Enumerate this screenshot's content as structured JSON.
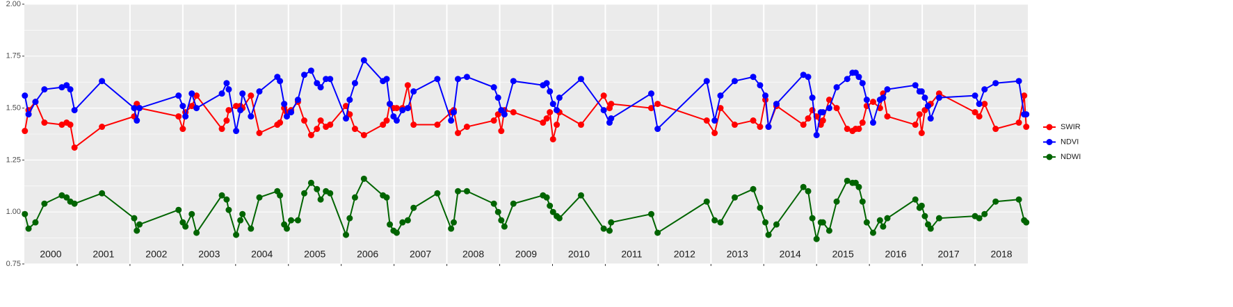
{
  "chart_data": {
    "type": "line",
    "x": [
      2000.01,
      2000.08,
      2000.21,
      2000.38,
      2000.71,
      2000.8,
      2000.87,
      2000.95,
      2001.47,
      2002.08,
      2002.13,
      2002.18,
      2002.92,
      2003.0,
      2003.05,
      2003.17,
      2003.26,
      2003.74,
      2003.83,
      2003.87,
      2004.01,
      2004.09,
      2004.13,
      2004.29,
      2004.45,
      2004.79,
      2004.84,
      2004.92,
      2004.97,
      2005.05,
      2005.18,
      2005.3,
      2005.43,
      2005.54,
      2005.61,
      2005.71,
      2005.79,
      2006.09,
      2006.16,
      2006.26,
      2006.43,
      2006.79,
      2006.86,
      2006.92,
      2006.99,
      2007.05,
      2007.16,
      2007.26,
      2007.37,
      2007.82,
      2008.08,
      2008.13,
      2008.21,
      2008.38,
      2008.89,
      2008.97,
      2009.03,
      2009.09,
      2009.26,
      2009.82,
      2009.89,
      2009.95,
      2010.01,
      2010.08,
      2010.13,
      2010.54,
      2010.97,
      2011.08,
      2011.11,
      2011.87,
      2011.99,
      2012.92,
      2013.07,
      2013.18,
      2013.45,
      2013.8,
      2013.93,
      2014.03,
      2014.09,
      2014.24,
      2014.75,
      2014.84,
      2014.92,
      2015.0,
      2015.08,
      2015.12,
      2015.24,
      2015.38,
      2015.58,
      2015.68,
      2015.74,
      2015.8,
      2015.87,
      2015.95,
      2016.07,
      2016.2,
      2016.26,
      2016.34,
      2016.87,
      2016.95,
      2016.99,
      2017.05,
      2017.11,
      2017.16,
      2017.32,
      2018.0,
      2018.08,
      2018.18,
      2018.39,
      2018.83,
      2018.93,
      2018.97
    ],
    "series": [
      {
        "name": "SWIR",
        "color": "#FF0000",
        "values": [
          1.39,
          1.49,
          1.53,
          1.43,
          1.42,
          1.43,
          1.42,
          1.31,
          1.41,
          1.46,
          1.52,
          1.5,
          1.46,
          1.4,
          1.48,
          1.51,
          1.56,
          1.4,
          1.44,
          1.49,
          1.51,
          1.51,
          1.5,
          1.56,
          1.38,
          1.42,
          1.43,
          1.5,
          1.48,
          1.49,
          1.53,
          1.44,
          1.37,
          1.4,
          1.44,
          1.41,
          1.42,
          1.51,
          1.47,
          1.4,
          1.37,
          1.42,
          1.44,
          1.52,
          1.5,
          1.5,
          1.5,
          1.61,
          1.42,
          1.42,
          1.48,
          1.49,
          1.38,
          1.41,
          1.44,
          1.47,
          1.39,
          1.49,
          1.48,
          1.43,
          1.45,
          1.48,
          1.35,
          1.42,
          1.48,
          1.42,
          1.56,
          1.5,
          1.52,
          1.5,
          1.52,
          1.44,
          1.38,
          1.5,
          1.42,
          1.44,
          1.41,
          1.54,
          1.41,
          1.51,
          1.42,
          1.45,
          1.49,
          1.46,
          1.42,
          1.44,
          1.54,
          1.5,
          1.4,
          1.39,
          1.4,
          1.4,
          1.43,
          1.51,
          1.53,
          1.5,
          1.57,
          1.46,
          1.42,
          1.47,
          1.38,
          1.49,
          1.51,
          1.52,
          1.57,
          1.48,
          1.46,
          1.52,
          1.4,
          1.43,
          1.56,
          1.41
        ]
      },
      {
        "name": "NDVI",
        "color": "#0000FF",
        "values": [
          1.56,
          1.47,
          1.53,
          1.59,
          1.6,
          1.61,
          1.59,
          1.49,
          1.63,
          1.5,
          1.44,
          1.5,
          1.56,
          1.51,
          1.46,
          1.57,
          1.5,
          1.57,
          1.62,
          1.59,
          1.39,
          1.49,
          1.57,
          1.46,
          1.58,
          1.65,
          1.63,
          1.52,
          1.46,
          1.48,
          1.54,
          1.66,
          1.68,
          1.62,
          1.6,
          1.64,
          1.64,
          1.45,
          1.54,
          1.62,
          1.73,
          1.63,
          1.64,
          1.52,
          1.46,
          1.44,
          1.49,
          1.5,
          1.58,
          1.64,
          1.44,
          1.48,
          1.64,
          1.65,
          1.6,
          1.55,
          1.49,
          1.47,
          1.63,
          1.61,
          1.62,
          1.58,
          1.52,
          1.49,
          1.55,
          1.64,
          1.49,
          1.43,
          1.45,
          1.57,
          1.4,
          1.63,
          1.44,
          1.56,
          1.63,
          1.65,
          1.61,
          1.56,
          1.41,
          1.52,
          1.66,
          1.65,
          1.55,
          1.37,
          1.48,
          1.48,
          1.5,
          1.6,
          1.64,
          1.67,
          1.67,
          1.65,
          1.62,
          1.54,
          1.43,
          1.54,
          1.55,
          1.59,
          1.61,
          1.58,
          1.58,
          1.55,
          1.51,
          1.45,
          1.55,
          1.56,
          1.52,
          1.59,
          1.62,
          1.63,
          1.47,
          1.47
        ]
      },
      {
        "name": "NDWI",
        "color": "#006400",
        "values": [
          0.99,
          0.92,
          0.95,
          1.04,
          1.08,
          1.07,
          1.05,
          1.04,
          1.09,
          0.97,
          0.91,
          0.94,
          1.01,
          0.95,
          0.93,
          0.99,
          0.9,
          1.08,
          1.06,
          1.01,
          0.89,
          0.96,
          0.99,
          0.92,
          1.07,
          1.1,
          1.08,
          0.94,
          0.92,
          0.96,
          0.96,
          1.09,
          1.14,
          1.11,
          1.06,
          1.1,
          1.09,
          0.89,
          0.97,
          1.07,
          1.16,
          1.08,
          1.07,
          0.94,
          0.91,
          0.9,
          0.95,
          0.96,
          1.02,
          1.09,
          0.92,
          0.95,
          1.1,
          1.1,
          1.04,
          1.0,
          0.96,
          0.93,
          1.04,
          1.08,
          1.07,
          1.03,
          1.0,
          0.98,
          0.97,
          1.08,
          0.92,
          0.91,
          0.95,
          0.99,
          0.9,
          1.05,
          0.96,
          0.95,
          1.07,
          1.11,
          1.02,
          0.95,
          0.89,
          0.94,
          1.12,
          1.1,
          0.97,
          0.87,
          0.95,
          0.95,
          0.91,
          1.05,
          1.15,
          1.14,
          1.14,
          1.12,
          1.05,
          0.95,
          0.9,
          0.96,
          0.93,
          0.97,
          1.06,
          1.02,
          1.03,
          0.98,
          0.94,
          0.92,
          0.97,
          0.98,
          0.97,
          0.99,
          1.05,
          1.06,
          0.96,
          0.95
        ]
      }
    ],
    "xlim": [
      2000,
      2019
    ],
    "xticks": [
      {
        "value": 2000.5,
        "label": "2000"
      },
      {
        "value": 2001.5,
        "label": "2001"
      },
      {
        "value": 2002.5,
        "label": "2002"
      },
      {
        "value": 2003.5,
        "label": "2003"
      },
      {
        "value": 2004.5,
        "label": "2004"
      },
      {
        "value": 2005.5,
        "label": "2005"
      },
      {
        "value": 2006.5,
        "label": "2006"
      },
      {
        "value": 2007.5,
        "label": "2007"
      },
      {
        "value": 2008.5,
        "label": "2008"
      },
      {
        "value": 2009.5,
        "label": "2009"
      },
      {
        "value": 2010.5,
        "label": "2010"
      },
      {
        "value": 2011.5,
        "label": "2011"
      },
      {
        "value": 2012.5,
        "label": "2012"
      },
      {
        "value": 2013.5,
        "label": "2013"
      },
      {
        "value": 2014.5,
        "label": "2014"
      },
      {
        "value": 2015.5,
        "label": "2015"
      },
      {
        "value": 2016.5,
        "label": "2016"
      },
      {
        "value": 2017.5,
        "label": "2017"
      },
      {
        "value": 2018.5,
        "label": "2018"
      }
    ],
    "xgrid": [
      2001,
      2002,
      2003,
      2004,
      2005,
      2006,
      2007,
      2008,
      2009,
      2010,
      2011,
      2012,
      2013,
      2014,
      2015,
      2016,
      2017,
      2018
    ],
    "ylim": [
      0.75,
      2.0
    ],
    "yticks": [
      {
        "value": 0.75,
        "label": "0.75"
      },
      {
        "value": 1.0,
        "label": "1.00"
      },
      {
        "value": 1.25,
        "label": "1.25"
      },
      {
        "value": 1.5,
        "label": "1.50"
      },
      {
        "value": 1.75,
        "label": "1.75"
      },
      {
        "value": 2.0,
        "label": "2.00"
      }
    ],
    "grid": true,
    "legend": "right"
  }
}
